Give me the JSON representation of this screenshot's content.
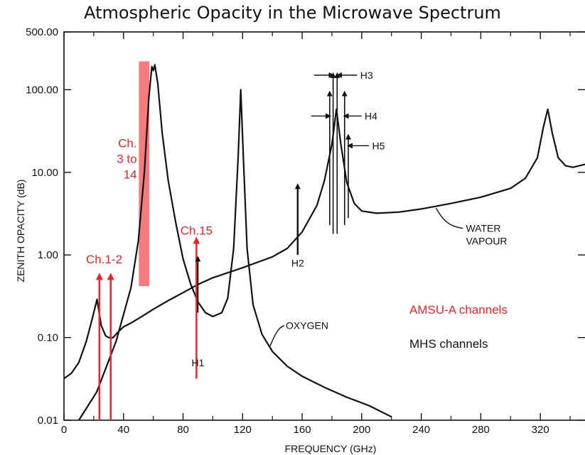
{
  "chart_data": {
    "type": "line",
    "title": "Atmospheric Opacity in the Microwave Spectrum",
    "xlabel": "FREQUENCY (GHz)",
    "ylabel": "ZENITH OPACITY (dB)",
    "xlim": [
      0,
      350
    ],
    "ylim": [
      0.01,
      500
    ],
    "yscale": "log",
    "grid": false,
    "x_ticks": [
      0,
      40,
      80,
      120,
      160,
      200,
      240,
      280,
      320
    ],
    "x_tick_labels": [
      "0",
      "40",
      "80",
      "120",
      "160",
      "200",
      "240",
      "280",
      "320"
    ],
    "y_ticks": [
      0.01,
      0.1,
      1,
      10,
      100,
      500
    ],
    "y_tick_labels": [
      "0.01",
      "0.10",
      "1.00",
      "10.00",
      "100.00",
      "500.00"
    ],
    "series": [
      {
        "name": "OXYGEN",
        "x": [
          10,
          22,
          35,
          45,
          50,
          54,
          57,
          59,
          60,
          61,
          63,
          66,
          70,
          75,
          80,
          85,
          90,
          95,
          100,
          106,
          110,
          114,
          117,
          118.75,
          120.5,
          123,
          127,
          133,
          140,
          150,
          160,
          175,
          190,
          205,
          220
        ],
        "y": [
          0.01,
          0.022,
          0.09,
          0.4,
          1.5,
          10,
          80,
          190,
          170,
          200,
          120,
          30,
          8,
          2.5,
          0.9,
          0.45,
          0.27,
          0.2,
          0.18,
          0.2,
          0.3,
          1.2,
          15,
          100,
          15,
          1.2,
          0.25,
          0.11,
          0.068,
          0.045,
          0.034,
          0.025,
          0.019,
          0.015,
          0.011
        ]
      },
      {
        "name": "WATER VAPOUR",
        "x": [
          0,
          5,
          10,
          15,
          19,
          22.2,
          25,
          28,
          30,
          33,
          36,
          40,
          45,
          50,
          60,
          70,
          80,
          90,
          100,
          120,
          140,
          150,
          160,
          170,
          175,
          180,
          183,
          186,
          190,
          195,
          200,
          210,
          225,
          240,
          260,
          280,
          300,
          310,
          318,
          322,
          325,
          328,
          332,
          337,
          342,
          350
        ],
        "y": [
          0.032,
          0.037,
          0.05,
          0.09,
          0.17,
          0.29,
          0.14,
          0.105,
          0.1,
          0.1,
          0.115,
          0.135,
          0.15,
          0.17,
          0.22,
          0.28,
          0.35,
          0.44,
          0.53,
          0.7,
          0.95,
          1.2,
          1.9,
          4,
          8,
          22,
          58,
          22,
          7.5,
          4.2,
          3.4,
          3.2,
          3.3,
          3.6,
          4.2,
          5,
          6.4,
          8.5,
          15,
          35,
          58,
          30,
          15,
          12,
          11.5,
          12.5
        ]
      }
    ],
    "amsu_channels": {
      "label": "AMSU-A channels",
      "color": "#e8262a",
      "ch1_2": {
        "label": "Ch.1-2",
        "freqs": [
          23.8,
          31.4
        ],
        "arrow_top": 0.55
      },
      "ch3_14": {
        "label_lines": [
          "Ch.",
          "3 to",
          "14"
        ],
        "band": [
          50.3,
          57.3
        ],
        "range": [
          0.42,
          220
        ]
      },
      "ch15": {
        "label": "Ch.15",
        "freq": 89,
        "arrow_top": 1.5
      }
    },
    "mhs_channels": {
      "label": "MHS channels",
      "color": "#111111",
      "H1": {
        "label": "H1",
        "freq": 89
      },
      "H2": {
        "label": "H2",
        "freq": 157
      },
      "H3": {
        "label": "H3"
      },
      "H4": {
        "label": "H4"
      },
      "H5": {
        "label": "H5"
      }
    },
    "annotations": {
      "oxygen": "OXYGEN",
      "water_lines": [
        "WATER",
        "VAPOUR"
      ]
    }
  }
}
